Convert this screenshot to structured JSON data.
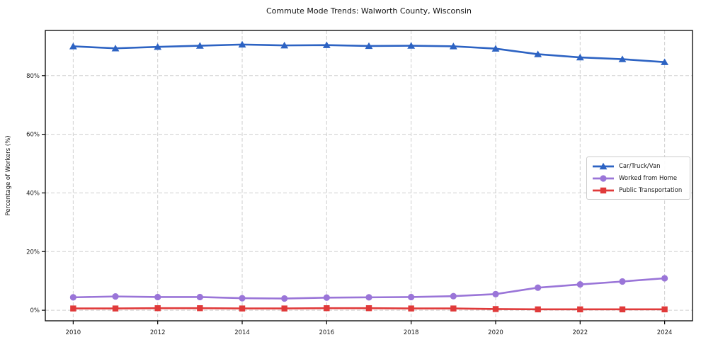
{
  "window": {
    "title": "Commute Mode Trends: Walworth County, Wisconsin"
  },
  "chart_data": {
    "type": "line",
    "title": "Commute Mode Trends: Walworth County, Wisconsin",
    "xlabel": "",
    "ylabel": "Percentage of Workers (%)",
    "x": [
      2010,
      2011,
      2012,
      2013,
      2014,
      2015,
      2016,
      2017,
      2018,
      2019,
      2020,
      2021,
      2022,
      2023,
      2024
    ],
    "x_ticks": [
      2010,
      2012,
      2014,
      2016,
      2018,
      2020,
      2022,
      2024
    ],
    "x_tick_labels": [
      "2010",
      "2012",
      "2014",
      "2016",
      "2018",
      "2020",
      "2022",
      "2024"
    ],
    "y_ticks": [
      0,
      20,
      40,
      60,
      80
    ],
    "y_tick_labels": [
      "0%",
      "20%",
      "40%",
      "60%",
      "80%"
    ],
    "xlim": [
      2009.34,
      2024.66
    ],
    "ylim": [
      -3.6,
      95.4
    ],
    "grid": true,
    "grid_style": "dashed",
    "legend_position": "right-center",
    "series": [
      {
        "name": "Car/Truck/Van",
        "color": "#2d63c3",
        "marker": "triangle",
        "values": [
          90.0,
          89.3,
          89.8,
          90.2,
          90.6,
          90.3,
          90.4,
          90.1,
          90.2,
          90.0,
          89.2,
          87.3,
          86.2,
          85.6,
          84.6
        ]
      },
      {
        "name": "Worked from Home",
        "color": "#9a75d8",
        "marker": "circle",
        "values": [
          4.4,
          4.7,
          4.5,
          4.5,
          4.1,
          4.0,
          4.3,
          4.4,
          4.5,
          4.8,
          5.5,
          7.7,
          8.8,
          9.8,
          10.9
        ]
      },
      {
        "name": "Public Transportation",
        "color": "#e03a3a",
        "marker": "square",
        "values": [
          0.6,
          0.6,
          0.7,
          0.7,
          0.6,
          0.6,
          0.7,
          0.7,
          0.6,
          0.6,
          0.4,
          0.3,
          0.3,
          0.3,
          0.3
        ]
      }
    ],
    "colors": {
      "grid": "#cfcfcf",
      "axis": "#000000",
      "background": "#ffffff",
      "text": "#1a1a1a"
    }
  }
}
